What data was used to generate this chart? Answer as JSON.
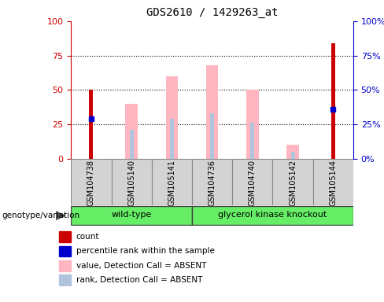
{
  "title": "GDS2610 / 1429263_at",
  "samples": [
    "GSM104738",
    "GSM105140",
    "GSM105141",
    "GSM104736",
    "GSM104740",
    "GSM105142",
    "GSM105144"
  ],
  "wt_count": 3,
  "gk_count": 4,
  "red_bars": [
    50,
    0,
    0,
    0,
    0,
    0,
    84
  ],
  "blue_dots": [
    29,
    0,
    0,
    0,
    0,
    0,
    36
  ],
  "pink_bars": [
    0,
    40,
    60,
    68,
    50,
    10,
    0
  ],
  "lavender_bars": [
    0,
    21,
    29,
    33,
    26,
    5,
    0
  ],
  "left_axis_color": "#cc0000",
  "right_axis_color": "#0000cc",
  "ylim": [
    0,
    100
  ],
  "yticks": [
    0,
    25,
    50,
    75,
    100
  ],
  "group_color": "#66ee66",
  "sample_box_color": "#d3d3d3",
  "plot_bg": "#ffffff",
  "legend_items": [
    {
      "label": "count",
      "color": "#cc0000"
    },
    {
      "label": "percentile rank within the sample",
      "color": "#0000cc"
    },
    {
      "label": "value, Detection Call = ABSENT",
      "color": "#ffb6c1"
    },
    {
      "label": "rank, Detection Call = ABSENT",
      "color": "#b0c4de"
    }
  ]
}
